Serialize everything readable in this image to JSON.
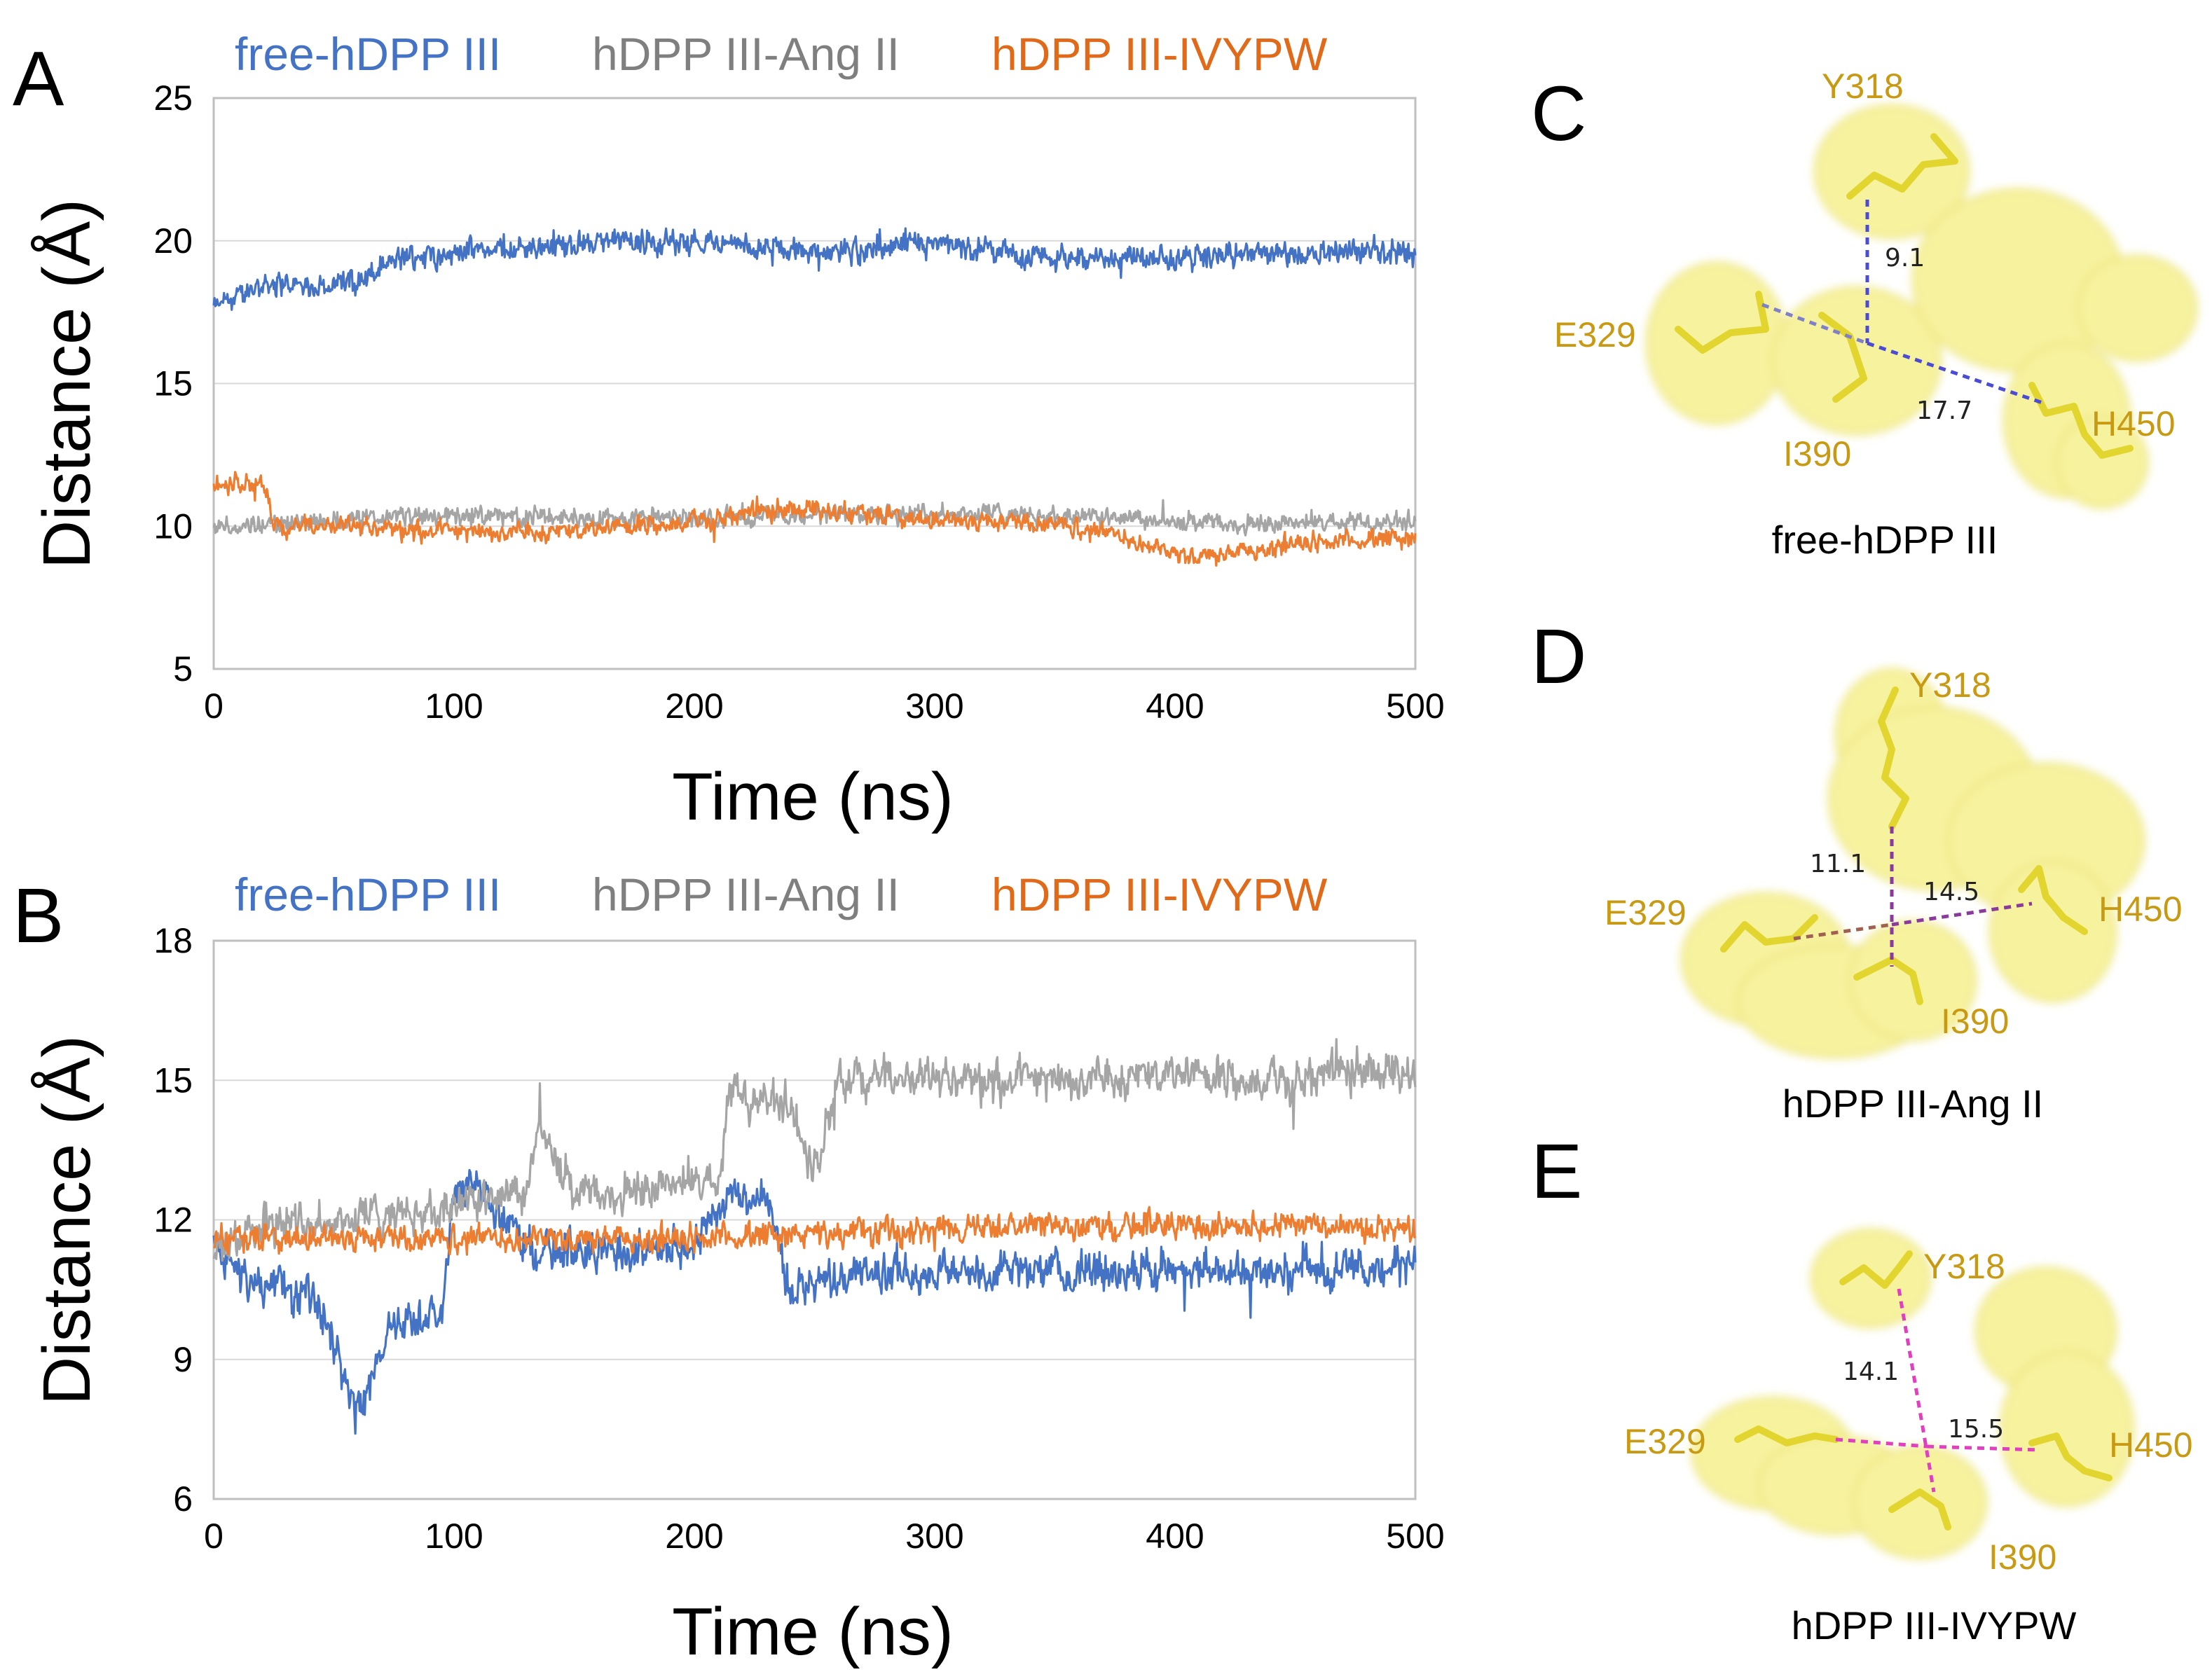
{
  "chart_data": [
    {
      "id": "A",
      "type": "line",
      "panel_letter": "A",
      "xlabel": "Time (ns)",
      "ylabel": "Distance (Å)",
      "xlim": [
        0,
        500
      ],
      "ylim": [
        5,
        25
      ],
      "xticks": [
        "0",
        "100",
        "200",
        "300",
        "400",
        "500"
      ],
      "yticks": [
        "5",
        "10",
        "15",
        "20",
        "25"
      ],
      "grid": "horizontal",
      "legend_position": "top",
      "series": [
        {
          "name": "free-hDPP III",
          "color": "#4472c4",
          "x": [
            0,
            20,
            40,
            60,
            80,
            100,
            150,
            200,
            250,
            300,
            350,
            400,
            450,
            500
          ],
          "values": [
            17.6,
            18.5,
            18.4,
            18.6,
            19.4,
            19.6,
            19.9,
            20.0,
            19.6,
            19.8,
            19.4,
            19.4,
            19.6,
            19.6
          ],
          "noise": 0.45
        },
        {
          "name": "hDPP III-Ang II",
          "color": "#a5a5a5",
          "x": [
            0,
            50,
            100,
            150,
            200,
            250,
            300,
            350,
            400,
            450,
            500
          ],
          "values": [
            10.0,
            10.2,
            10.4,
            10.3,
            10.3,
            10.4,
            10.5,
            10.4,
            10.1,
            10.1,
            10.2
          ],
          "noise": 0.35
        },
        {
          "name": "hDPP III-IVYPW",
          "color": "#ed7d31",
          "x": [
            0,
            10,
            22,
            25,
            50,
            100,
            150,
            200,
            250,
            300,
            350,
            380,
            400,
            420,
            450,
            500
          ],
          "values": [
            11.5,
            11.5,
            11.4,
            9.9,
            10.0,
            9.8,
            9.8,
            10.2,
            10.6,
            10.2,
            10.1,
            9.6,
            9.0,
            9.0,
            9.4,
            9.6
          ],
          "noise": 0.35
        }
      ]
    },
    {
      "id": "B",
      "type": "line",
      "panel_letter": "B",
      "xlabel": "Time (ns)",
      "ylabel": "Distance (Å)",
      "xlim": [
        0,
        500
      ],
      "ylim": [
        6,
        18
      ],
      "xticks": [
        "0",
        "100",
        "200",
        "300",
        "400",
        "500"
      ],
      "yticks": [
        "6",
        "9",
        "12",
        "15",
        "18"
      ],
      "grid": "horizontal",
      "legend_position": "top",
      "series": [
        {
          "name": "free-hDPP III",
          "color": "#4472c4",
          "x": [
            0,
            10,
            30,
            45,
            55,
            62,
            70,
            80,
            95,
            100,
            110,
            130,
            150,
            200,
            215,
            230,
            240,
            260,
            300,
            350,
            400,
            450,
            500
          ],
          "values": [
            11.5,
            10.8,
            10.5,
            10.2,
            8.5,
            7.8,
            9.5,
            9.8,
            10.0,
            12.5,
            12.8,
            11.5,
            11.3,
            11.5,
            12.5,
            12.5,
            10.5,
            10.8,
            10.9,
            10.9,
            10.9,
            10.9,
            11.0
          ],
          "noise": 0.45
        },
        {
          "name": "hDPP III-Ang II",
          "color": "#a5a5a5",
          "x": [
            0,
            20,
            50,
            100,
            130,
            135,
            150,
            200,
            210,
            215,
            240,
            250,
            260,
            300,
            350,
            400,
            450,
            500
          ],
          "values": [
            11.3,
            12.0,
            12.0,
            12.3,
            12.5,
            14.0,
            12.5,
            12.8,
            12.8,
            14.8,
            14.5,
            13.0,
            15.0,
            15.0,
            15.0,
            15.1,
            15.0,
            15.2
          ],
          "noise": 0.45
        },
        {
          "name": "hDPP III-IVYPW",
          "color": "#ed7d31",
          "x": [
            0,
            50,
            100,
            150,
            200,
            250,
            300,
            350,
            400,
            450,
            500
          ],
          "values": [
            11.6,
            11.6,
            11.6,
            11.6,
            11.6,
            11.7,
            11.8,
            11.9,
            11.9,
            11.9,
            11.8
          ],
          "noise": 0.3
        }
      ]
    }
  ],
  "structures": [
    {
      "id": "C",
      "panel_letter": "C",
      "title": "free-hDPP III",
      "residues": [
        "Y318",
        "E329",
        "I390",
        "H450"
      ],
      "distances": [
        "9.1",
        "17.7"
      ],
      "line_color": "#4b4bd6"
    },
    {
      "id": "D",
      "panel_letter": "D",
      "title": "hDPP III-Ang II",
      "residues": [
        "Y318",
        "E329",
        "I390",
        "H450"
      ],
      "distances": [
        "11.1",
        "14.5"
      ],
      "line_color": "#8a3a9a"
    },
    {
      "id": "E",
      "panel_letter": "E",
      "title": "hDPP III-IVYPW",
      "residues": [
        "Y318",
        "E329",
        "I390",
        "H450"
      ],
      "distances": [
        "14.1",
        "15.5"
      ],
      "line_color": "#e040c0"
    }
  ],
  "colors": {
    "surface": "#f5f09a",
    "stick": "#e8dc3c",
    "label": "#c89a14"
  }
}
